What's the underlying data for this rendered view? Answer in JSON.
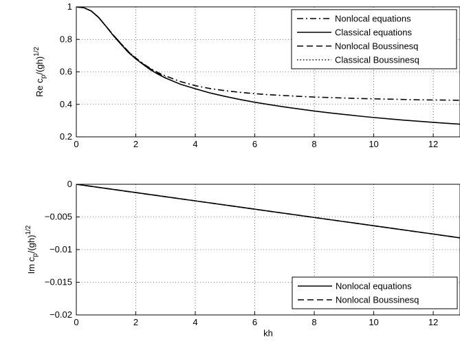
{
  "chart_data": [
    {
      "type": "line",
      "ylabel": "Re c_p/(gh)^1/2",
      "ylabel_parts": {
        "main": "Re c",
        "sub": "p",
        "tail": "/(gh)",
        "sup": "1/2"
      },
      "xlabel": "",
      "xlim": [
        0,
        12.9
      ],
      "ylim": [
        0.2,
        1.0
      ],
      "xticks": [
        0,
        2,
        4,
        6,
        8,
        10,
        12
      ],
      "xtick_labels": [
        "0",
        "2",
        "4",
        "6",
        "8",
        "10",
        "12"
      ],
      "yticks": [
        0.2,
        0.4,
        0.6,
        0.8,
        1.0
      ],
      "ytick_labels": [
        "0.2",
        "0.4",
        "0.6",
        "0.8",
        "1"
      ],
      "grid": true,
      "legend_position": "top-right",
      "series": [
        {
          "name": "Nonlocal equations",
          "style": "dashdot",
          "x": [
            0,
            0.25,
            0.5,
            0.75,
            1.0,
            1.25,
            1.5,
            1.75,
            2.0,
            2.25,
            2.5,
            2.75,
            3.0,
            3.5,
            4.0,
            4.5,
            5.0,
            5.5,
            6.0,
            6.5,
            7.0,
            7.5,
            8.0,
            8.5,
            9.0,
            9.5,
            10.0,
            10.5,
            11.0,
            11.5,
            12.0,
            12.5,
            12.9
          ],
          "y": [
            1.0,
            0.995,
            0.975,
            0.935,
            0.88,
            0.825,
            0.775,
            0.725,
            0.685,
            0.65,
            0.62,
            0.595,
            0.575,
            0.54,
            0.515,
            0.497,
            0.484,
            0.474,
            0.466,
            0.459,
            0.454,
            0.449,
            0.445,
            0.442,
            0.439,
            0.436,
            0.434,
            0.432,
            0.43,
            0.428,
            0.427,
            0.426,
            0.425
          ]
        },
        {
          "name": "Classical equations",
          "style": "solid",
          "x": [
            0,
            0.25,
            0.5,
            0.75,
            1.0,
            1.25,
            1.5,
            1.75,
            2.0,
            2.25,
            2.5,
            2.75,
            3.0,
            3.5,
            4.0,
            4.5,
            5.0,
            5.5,
            6.0,
            6.5,
            7.0,
            7.5,
            8.0,
            8.5,
            9.0,
            9.5,
            10.0,
            10.5,
            11.0,
            11.5,
            12.0,
            12.5,
            12.9
          ],
          "y": [
            1.0,
            0.995,
            0.975,
            0.935,
            0.88,
            0.822,
            0.77,
            0.72,
            0.68,
            0.645,
            0.612,
            0.585,
            0.562,
            0.524,
            0.496,
            0.47,
            0.449,
            0.43,
            0.413,
            0.398,
            0.384,
            0.371,
            0.359,
            0.348,
            0.338,
            0.328,
            0.319,
            0.311,
            0.303,
            0.296,
            0.289,
            0.283,
            0.278
          ]
        },
        {
          "name": "Nonlocal Boussinesq",
          "style": "dashed",
          "x": [
            0,
            0.25,
            0.5,
            0.75,
            1.0,
            1.25,
            1.5,
            1.75,
            2.0,
            2.25,
            2.5,
            2.75,
            3.0
          ],
          "y": [
            1.0,
            0.995,
            0.975,
            0.935,
            0.88,
            0.825,
            0.774,
            0.724,
            0.683,
            0.648,
            0.617,
            0.59,
            0.568
          ]
        },
        {
          "name": "Classical Boussinesq",
          "style": "dotted",
          "x": [
            0,
            0.25,
            0.5,
            0.75,
            1.0,
            1.25,
            1.5,
            1.75,
            2.0,
            2.25,
            2.5
          ],
          "y": [
            1.0,
            0.995,
            0.975,
            0.935,
            0.88,
            0.822,
            0.77,
            0.72,
            0.68,
            0.645,
            0.612
          ]
        }
      ]
    },
    {
      "type": "line",
      "ylabel": "Im c_p/(gh)^1/2",
      "ylabel_parts": {
        "main": "Im c",
        "sub": "p",
        "tail": "/(gh)",
        "sup": "1/2"
      },
      "xlabel": "kh",
      "xlim": [
        0,
        12.9
      ],
      "ylim": [
        -0.02,
        0.0
      ],
      "xticks": [
        0,
        2,
        4,
        6,
        8,
        10,
        12
      ],
      "xtick_labels": [
        "0",
        "2",
        "4",
        "6",
        "8",
        "10",
        "12"
      ],
      "yticks": [
        -0.02,
        -0.015,
        -0.01,
        -0.005,
        0.0
      ],
      "ytick_labels": [
        "−0.02",
        "−0.015",
        "−0.01",
        "−0.005",
        "0"
      ],
      "grid": true,
      "legend_position": "bottom-right",
      "series": [
        {
          "name": "Nonlocal equations",
          "style": "solid",
          "x": [
            0,
            2,
            4,
            6,
            8,
            10,
            12,
            12.9
          ],
          "y": [
            0.0,
            -0.00127,
            -0.00254,
            -0.00381,
            -0.00508,
            -0.00635,
            -0.00762,
            -0.0082
          ]
        },
        {
          "name": "Nonlocal Boussinesq",
          "style": "dashed",
          "x": [
            0,
            2,
            4,
            6,
            8,
            10,
            12,
            12.9
          ],
          "y": [
            0.0,
            -0.00127,
            -0.00254,
            -0.00381,
            -0.00508,
            -0.00635,
            -0.00762,
            -0.0082
          ]
        }
      ]
    }
  ]
}
